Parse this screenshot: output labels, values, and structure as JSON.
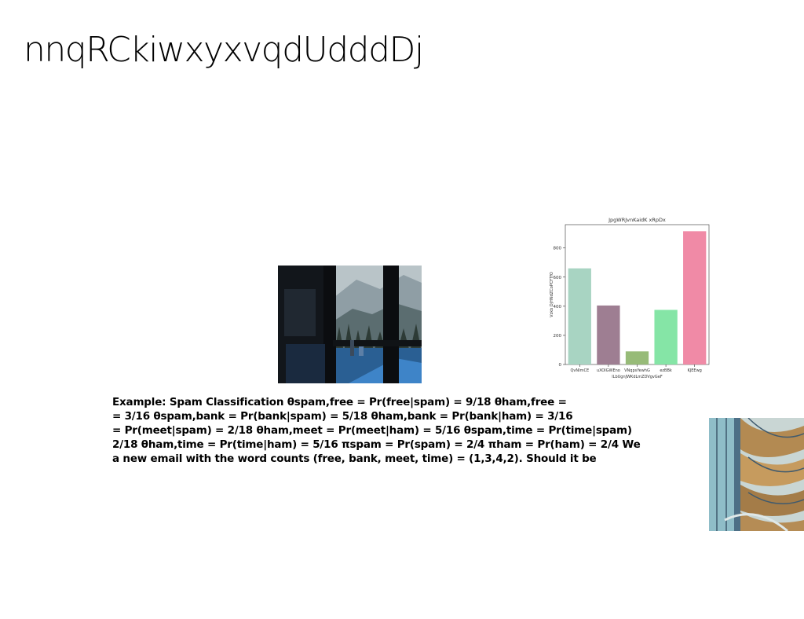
{
  "slide": {
    "title": "nnqRCkiwxyxvqdUdddDj",
    "body_lines": [
      "Example: Spam Classification θspam,free = Pr(free|spam) = 9/18 θham,free =",
      "= 3/16 θspam,bank = Pr(bank|spam) = 5/18 θham,bank = Pr(bank|ham) = 3/16",
      "= Pr(meet|spam) = 2/18 θham,meet = Pr(meet|ham) = 5/16 θspam,time = Pr(time|spam)",
      "2/18 θham,time = Pr(time|ham) = 5/16 πspam = Pr(spam) = 2/4 πham = Pr(ham) = 2/4 We",
      "a new email with the word counts (free, bank, meet, time) = (1,3,4,2). Should it be"
    ]
  },
  "images": {
    "window_photo": "window view of snowy mountain forest",
    "stairs_photo": "spiral staircase illustration"
  },
  "chart_data": {
    "type": "bar",
    "title": "JpgWRJvnKaidK xRpDx",
    "xlabel": "lLbUgnJWKdLmZDVgvGeF",
    "ylabel": "Vzkb DjHNdZCoPCFTfO",
    "categories": [
      "QvNImCE",
      "uXOIGWEno",
      "VNqpsYewhG",
      "ezBBk",
      "KJEEwg"
    ],
    "values": [
      660,
      405,
      90,
      375,
      915
    ],
    "colors": [
      "#a8d4c2",
      "#9e7e92",
      "#97bb78",
      "#85e5a6",
      "#f08aa6"
    ],
    "yticks": [
      0,
      200,
      400,
      600,
      800
    ],
    "ylim": [
      0,
      960
    ],
    "grid": false
  }
}
